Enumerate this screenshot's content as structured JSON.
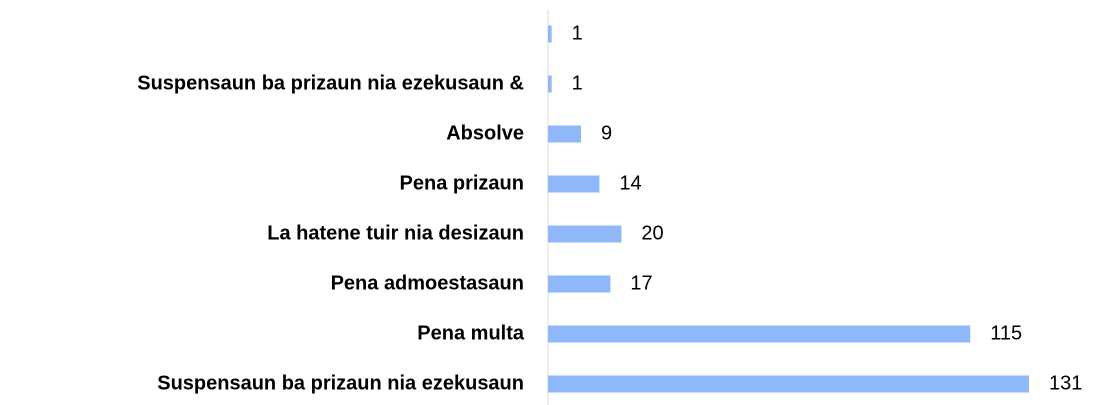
{
  "chart_data": {
    "type": "bar",
    "orientation": "horizontal",
    "categories": [
      null,
      "Suspensaun ba prizaun nia ezekusaun &",
      "Absolve",
      "Pena prizaun",
      "La hatene tuir nia desizaun",
      "Pena admoestasaun",
      "Pena multa",
      "Suspensaun ba prizaun nia ezekusaun"
    ],
    "values": [
      1,
      1,
      9,
      14,
      20,
      17,
      115,
      131
    ],
    "color": "#8fb8fb"
  }
}
